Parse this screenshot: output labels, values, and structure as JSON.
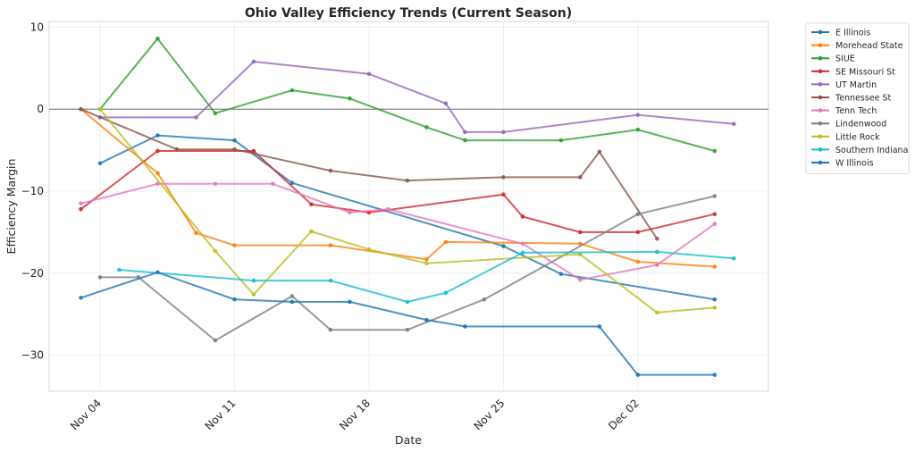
{
  "chart_data": {
    "type": "line",
    "title": "Ohio Valley Efficiency Trends (Current Season)",
    "xlabel": "Date",
    "ylabel": "Efficiency Margin",
    "x_is_date": true,
    "x_ticks": [
      {
        "day": 4,
        "label": "Nov 04"
      },
      {
        "day": 11,
        "label": "Nov 11"
      },
      {
        "day": 18,
        "label": "Nov 18"
      },
      {
        "day": 25,
        "label": "Nov 25"
      },
      {
        "day": 32,
        "label": "Dec 02"
      }
    ],
    "x_axis_note": "day = day of November (Dec 02 = 32)",
    "xlim": [
      1.35,
      38.8
    ],
    "ylim": [
      -34.4,
      10.7
    ],
    "y_ticks": [
      10,
      0,
      -10,
      -20,
      -30
    ],
    "y_tick_labels": [
      "10",
      "0",
      "−10",
      "−20",
      "−30"
    ],
    "zero_line": true,
    "grid": true,
    "legend_position": "outside-top-right",
    "series": [
      {
        "name": "E Illinois",
        "color": "#1f77b4",
        "x": [
          4,
          7,
          11,
          14,
          25,
          28,
          36
        ],
        "y": [
          -6.6,
          -3.2,
          -3.8,
          -9.0,
          -16.7,
          -20.1,
          -23.2
        ]
      },
      {
        "name": "Morehead State",
        "color": "#ff7f0e",
        "x": [
          3,
          7,
          9,
          11,
          16,
          21,
          22,
          29,
          32,
          36
        ],
        "y": [
          0,
          -7.8,
          -15.1,
          -16.6,
          -16.6,
          -18.3,
          -16.2,
          -16.4,
          -18.6,
          -19.2
        ]
      },
      {
        "name": "SIUE",
        "color": "#2ca02c",
        "x": [
          4,
          7,
          10,
          14,
          17,
          21,
          23,
          28,
          32,
          36
        ],
        "y": [
          0,
          8.6,
          -0.5,
          2.3,
          1.3,
          -2.2,
          -3.8,
          -3.8,
          -2.5,
          -5.1
        ]
      },
      {
        "name": "SE Missouri St",
        "color": "#d62728",
        "x": [
          3,
          7,
          12,
          15,
          18,
          25,
          26,
          29,
          32,
          36
        ],
        "y": [
          -12.2,
          -5.1,
          -5.1,
          -11.6,
          -12.6,
          -10.4,
          -13.1,
          -15.0,
          -15.0,
          -12.8
        ]
      },
      {
        "name": "UT Martin",
        "color": "#9467bd",
        "x": [
          4,
          9,
          12,
          18,
          22,
          23,
          25,
          32,
          37
        ],
        "y": [
          -1.0,
          -1.0,
          5.8,
          4.3,
          0.7,
          -2.8,
          -2.8,
          -0.7,
          -1.8
        ]
      },
      {
        "name": "Tennessee St",
        "color": "#8c564b",
        "x": [
          3,
          8,
          11,
          16,
          20,
          25,
          29,
          30,
          33
        ],
        "y": [
          0,
          -4.9,
          -4.9,
          -7.5,
          -8.7,
          -8.3,
          -8.3,
          -5.2,
          -15.8
        ]
      },
      {
        "name": "Tenn Tech",
        "color": "#e377c2",
        "x": [
          3,
          7,
          10,
          13,
          17,
          19,
          26,
          29,
          33,
          36
        ],
        "y": [
          -11.5,
          -9.1,
          -9.1,
          -9.1,
          -12.6,
          -12.2,
          -16.4,
          -20.8,
          -19.0,
          -14.0
        ]
      },
      {
        "name": "Lindenwood",
        "color": "#7f7f7f",
        "x": [
          4,
          6,
          10,
          14,
          16,
          20,
          24,
          32,
          36
        ],
        "y": [
          -20.5,
          -20.5,
          -28.2,
          -22.8,
          -26.9,
          -26.9,
          -23.2,
          -12.8,
          -10.6
        ]
      },
      {
        "name": "Little Rock",
        "color": "#bcbd22",
        "x": [
          4,
          10,
          12,
          15,
          18,
          21,
          29,
          33,
          36
        ],
        "y": [
          0,
          -17.3,
          -22.6,
          -14.9,
          -17.1,
          -18.8,
          -17.7,
          -24.8,
          -24.2
        ]
      },
      {
        "name": "Southern Indiana",
        "color": "#17becf",
        "x": [
          5,
          12,
          16,
          20,
          22,
          26,
          33,
          37
        ],
        "y": [
          -19.6,
          -20.9,
          -20.9,
          -23.5,
          -22.4,
          -17.5,
          -17.4,
          -18.2
        ]
      },
      {
        "name": "W Illinois",
        "color": "#1f77b4",
        "x": [
          3,
          7,
          11,
          14,
          17,
          21,
          23,
          30,
          32,
          36
        ],
        "y": [
          -23.0,
          -19.9,
          -23.2,
          -23.5,
          -23.5,
          -25.7,
          -26.5,
          -26.5,
          -32.4,
          -32.4
        ]
      }
    ]
  }
}
